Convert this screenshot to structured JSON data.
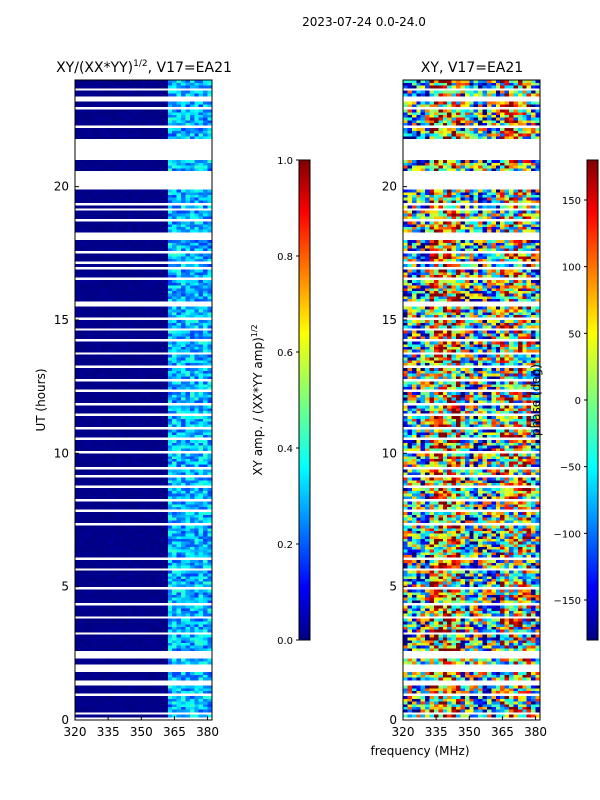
{
  "figure_title": "2023-07-24 0.0-24.0",
  "shared_xlabel": "frequency (MHz)",
  "chart_data": [
    {
      "type": "heatmap",
      "title": "XY/(XX*YY)1/2, V17=EA21",
      "title_main": "XY/(XX*YY)",
      "title_sup": "1/2",
      "title_suffix": ", V17=EA21",
      "xlabel": "frequency (MHz)",
      "ylabel": "UT (hours)",
      "xlim": [
        320,
        382
      ],
      "ylim": [
        0,
        24
      ],
      "xticks": [
        320,
        335,
        350,
        365,
        380
      ],
      "yticks": [
        0,
        5,
        10,
        15,
        20
      ],
      "colorbar": {
        "label_main": "XY amp. / (XX*YY amp)",
        "label_sup": "1/2",
        "range": [
          0.0,
          1.0
        ],
        "ticks": [
          "0.0",
          "0.2",
          "0.4",
          "0.6",
          "0.8",
          "1.0"
        ],
        "tick_values": [
          0.0,
          0.2,
          0.4,
          0.6,
          0.8,
          1.0
        ],
        "colormap": "jet"
      },
      "description": "mostly near 0 (dark blue) below 362 MHz; elevated amplitude ~0.2-0.5 in 362-382 MHz band; horizontal white gaps of missing data"
    },
    {
      "type": "heatmap",
      "title": "XY, V17=EA21",
      "xlabel": "frequency (MHz)",
      "ylabel": "",
      "xlim": [
        320,
        382
      ],
      "ylim": [
        0,
        24
      ],
      "xticks": [
        320,
        335,
        350,
        365,
        380
      ],
      "yticks": [
        0,
        5,
        10,
        15,
        20
      ],
      "colorbar": {
        "label": "phase (deg)",
        "range": [
          -180,
          180
        ],
        "ticks": [
          "150",
          "100",
          "50",
          "0",
          "−50",
          "−100",
          "−150"
        ],
        "tick_values": [
          150,
          100,
          50,
          0,
          -50,
          -100,
          -150
        ],
        "colormap": "jet"
      },
      "description": "phase noisy across full range -180..180 with structure around 335-345 MHz and 365-380 MHz; same horizontal data gaps"
    }
  ],
  "gaps_hours": [
    [
      0.05,
      0.12
    ],
    [
      0.25,
      0.32
    ],
    [
      0.55,
      0.62
    ],
    [
      0.9,
      0.98
    ],
    [
      1.3,
      1.45
    ],
    [
      1.85,
      2.05
    ],
    [
      2.35,
      2.45
    ],
    [
      2.55,
      2.6
    ],
    [
      3.2,
      3.27
    ],
    [
      3.45,
      3.5
    ],
    [
      3.8,
      3.87
    ],
    [
      4.3,
      4.35
    ],
    [
      4.9,
      4.95
    ],
    [
      5.3,
      5.35
    ],
    [
      5.65,
      5.7
    ],
    [
      6.05,
      6.1
    ],
    [
      6.45,
      6.5
    ],
    [
      6.9,
      6.95
    ],
    [
      7.35,
      7.4
    ],
    [
      7.8,
      7.85
    ],
    [
      8.2,
      8.27
    ],
    [
      8.7,
      8.75
    ],
    [
      9.1,
      9.17
    ],
    [
      9.45,
      9.52
    ],
    [
      10.0,
      10.05
    ],
    [
      10.5,
      10.55
    ],
    [
      10.95,
      11.0
    ],
    [
      11.4,
      11.47
    ],
    [
      11.85,
      11.9
    ],
    [
      12.3,
      12.37
    ],
    [
      12.75,
      12.8
    ],
    [
      13.2,
      13.25
    ],
    [
      13.7,
      13.77
    ],
    [
      14.2,
      14.27
    ],
    [
      14.65,
      14.72
    ],
    [
      15.05,
      15.12
    ],
    [
      15.5,
      15.65
    ],
    [
      16.1,
      16.15
    ],
    [
      16.5,
      16.55
    ],
    [
      16.9,
      17.0
    ],
    [
      17.1,
      17.2
    ],
    [
      17.5,
      17.55
    ],
    [
      18.0,
      18.25
    ],
    [
      18.7,
      18.75
    ],
    [
      19.1,
      19.2
    ],
    [
      19.3,
      19.35
    ],
    [
      19.85,
      20.6
    ],
    [
      21.0,
      21.8
    ],
    [
      22.2,
      22.3
    ],
    [
      22.9,
      23.0
    ],
    [
      23.25,
      23.35
    ],
    [
      23.6,
      23.7
    ]
  ]
}
